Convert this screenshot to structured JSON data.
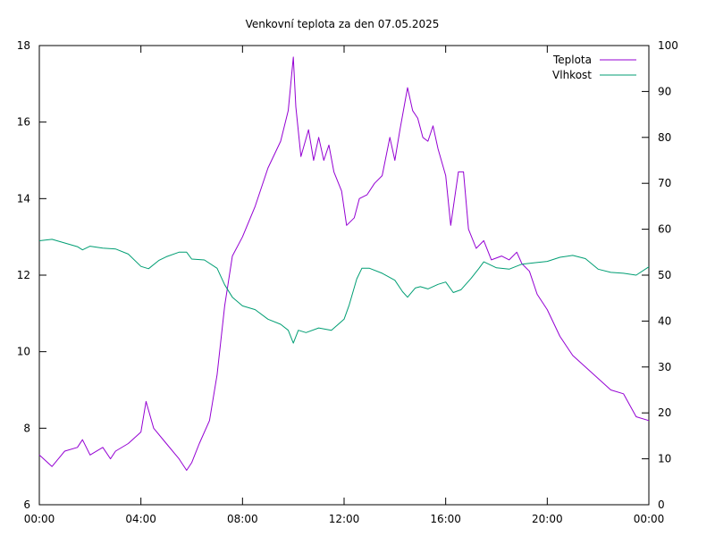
{
  "chart_data": {
    "type": "line",
    "title": "Venkovní teplota za den 07.05.2025",
    "x_tick_labels": [
      "00:00",
      "04:00",
      "08:00",
      "12:00",
      "16:00",
      "20:00",
      "00:00"
    ],
    "x_range_hours": [
      0,
      24
    ],
    "y_left": {
      "range": [
        6,
        18
      ],
      "ticks": [
        6,
        8,
        10,
        12,
        14,
        16,
        18
      ]
    },
    "y_right": {
      "range": [
        0,
        100
      ],
      "ticks": [
        0,
        10,
        20,
        30,
        40,
        50,
        60,
        70,
        80,
        90,
        100
      ]
    },
    "grid": false,
    "legend_position": "top-right",
    "series": [
      {
        "name": "Teplota",
        "axis": "left",
        "color": "#9400d3",
        "x_hours": [
          0,
          0.5,
          1,
          1.5,
          1.7,
          2,
          2.5,
          2.8,
          3,
          3.5,
          4,
          4.2,
          4.5,
          5,
          5.5,
          5.8,
          6,
          6.3,
          6.7,
          7,
          7.3,
          7.6,
          8,
          8.5,
          9,
          9.5,
          9.8,
          10,
          10.1,
          10.3,
          10.6,
          10.8,
          11,
          11.2,
          11.4,
          11.6,
          11.9,
          12.1,
          12.4,
          12.6,
          12.9,
          13.2,
          13.5,
          13.8,
          14,
          14.2,
          14.5,
          14.7,
          14.9,
          15.1,
          15.3,
          15.5,
          15.7,
          16,
          16.2,
          16.5,
          16.7,
          16.9,
          17.2,
          17.5,
          17.8,
          18.2,
          18.5,
          18.8,
          19,
          19.3,
          19.6,
          20,
          20.5,
          21,
          21.5,
          22,
          22.5,
          23,
          23.5,
          24
        ],
        "values": [
          7.3,
          7.0,
          7.4,
          7.5,
          7.7,
          7.3,
          7.5,
          7.2,
          7.4,
          7.6,
          7.9,
          8.7,
          8.0,
          7.6,
          7.2,
          6.9,
          7.1,
          7.6,
          8.2,
          9.4,
          11.2,
          12.5,
          13.0,
          13.8,
          14.8,
          15.5,
          16.3,
          17.7,
          16.4,
          15.1,
          15.8,
          15.0,
          15.6,
          15.0,
          15.4,
          14.7,
          14.2,
          13.3,
          13.5,
          14.0,
          14.1,
          14.4,
          14.6,
          15.6,
          15.0,
          15.8,
          16.9,
          16.3,
          16.1,
          15.6,
          15.5,
          15.9,
          15.3,
          14.6,
          13.3,
          14.7,
          14.7,
          13.2,
          12.7,
          12.9,
          12.4,
          12.5,
          12.4,
          12.6,
          12.3,
          12.1,
          11.5,
          11.1,
          10.4,
          9.9,
          9.6,
          9.3,
          9.0,
          8.9,
          8.3,
          8.2
        ]
      },
      {
        "name": "Vlhkost",
        "axis": "right",
        "color": "#009e73",
        "x_hours": [
          0,
          0.5,
          1,
          1.5,
          1.7,
          2,
          2.5,
          3,
          3.5,
          4,
          4.3,
          4.7,
          5,
          5.5,
          5.8,
          6,
          6.5,
          7,
          7.3,
          7.6,
          8,
          8.5,
          9,
          9.5,
          9.8,
          10,
          10.2,
          10.5,
          11,
          11.5,
          12,
          12.2,
          12.5,
          12.7,
          13,
          13.5,
          14,
          14.3,
          14.5,
          14.8,
          15,
          15.3,
          15.7,
          16,
          16.3,
          16.6,
          17,
          17.3,
          17.5,
          18,
          18.5,
          19,
          19.5,
          20,
          20.5,
          21,
          21.5,
          22,
          22.5,
          23,
          23.5,
          24
        ],
        "values": [
          57.5,
          57.8,
          57.0,
          56.2,
          55.5,
          56.3,
          55.9,
          55.7,
          54.6,
          51.9,
          51.4,
          53.2,
          54.0,
          55.0,
          55.0,
          53.5,
          53.3,
          51.5,
          47.9,
          45.2,
          43.3,
          42.5,
          40.4,
          39.3,
          38.0,
          35.2,
          38.0,
          37.5,
          38.5,
          38.0,
          40.4,
          43.5,
          49.2,
          51.5,
          51.5,
          50.4,
          48.9,
          46.4,
          45.2,
          47.2,
          47.5,
          47.0,
          48.0,
          48.5,
          46.2,
          46.8,
          49.3,
          51.4,
          52.9,
          51.6,
          51.3,
          52.4,
          52.7,
          53.0,
          53.9,
          54.3,
          53.6,
          51.3,
          50.6,
          50.4,
          50.0,
          51.8
        ]
      }
    ]
  }
}
